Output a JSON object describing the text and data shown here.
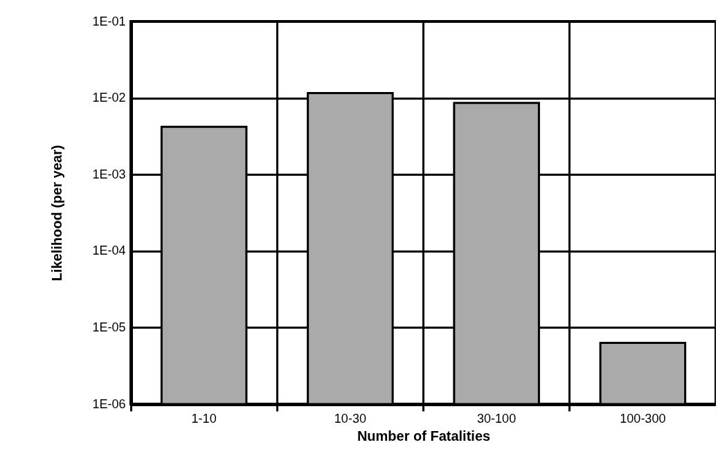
{
  "chart_data": {
    "type": "bar",
    "xlabel": "Number of Fatalities",
    "ylabel": "Likelihood (per year)",
    "categories": [
      "1-10",
      "10-30",
      "30-100",
      "100-300"
    ],
    "values": [
      0.0042,
      0.0116,
      0.0086,
      6.3e-06
    ],
    "color": "#aaaaaa",
    "log": true,
    "grid": true,
    "ylim": [
      1e-06,
      0.1
    ],
    "yticks": [
      {
        "value": 1e-06,
        "label": "1E-06"
      },
      {
        "value": 1e-05,
        "label": "1E-05"
      },
      {
        "value": 0.0001,
        "label": "1E-04"
      },
      {
        "value": 0.001,
        "label": "1E-03"
      },
      {
        "value": 0.01,
        "label": "1E-02"
      },
      {
        "value": 0.1,
        "label": "1E-01"
      }
    ]
  }
}
